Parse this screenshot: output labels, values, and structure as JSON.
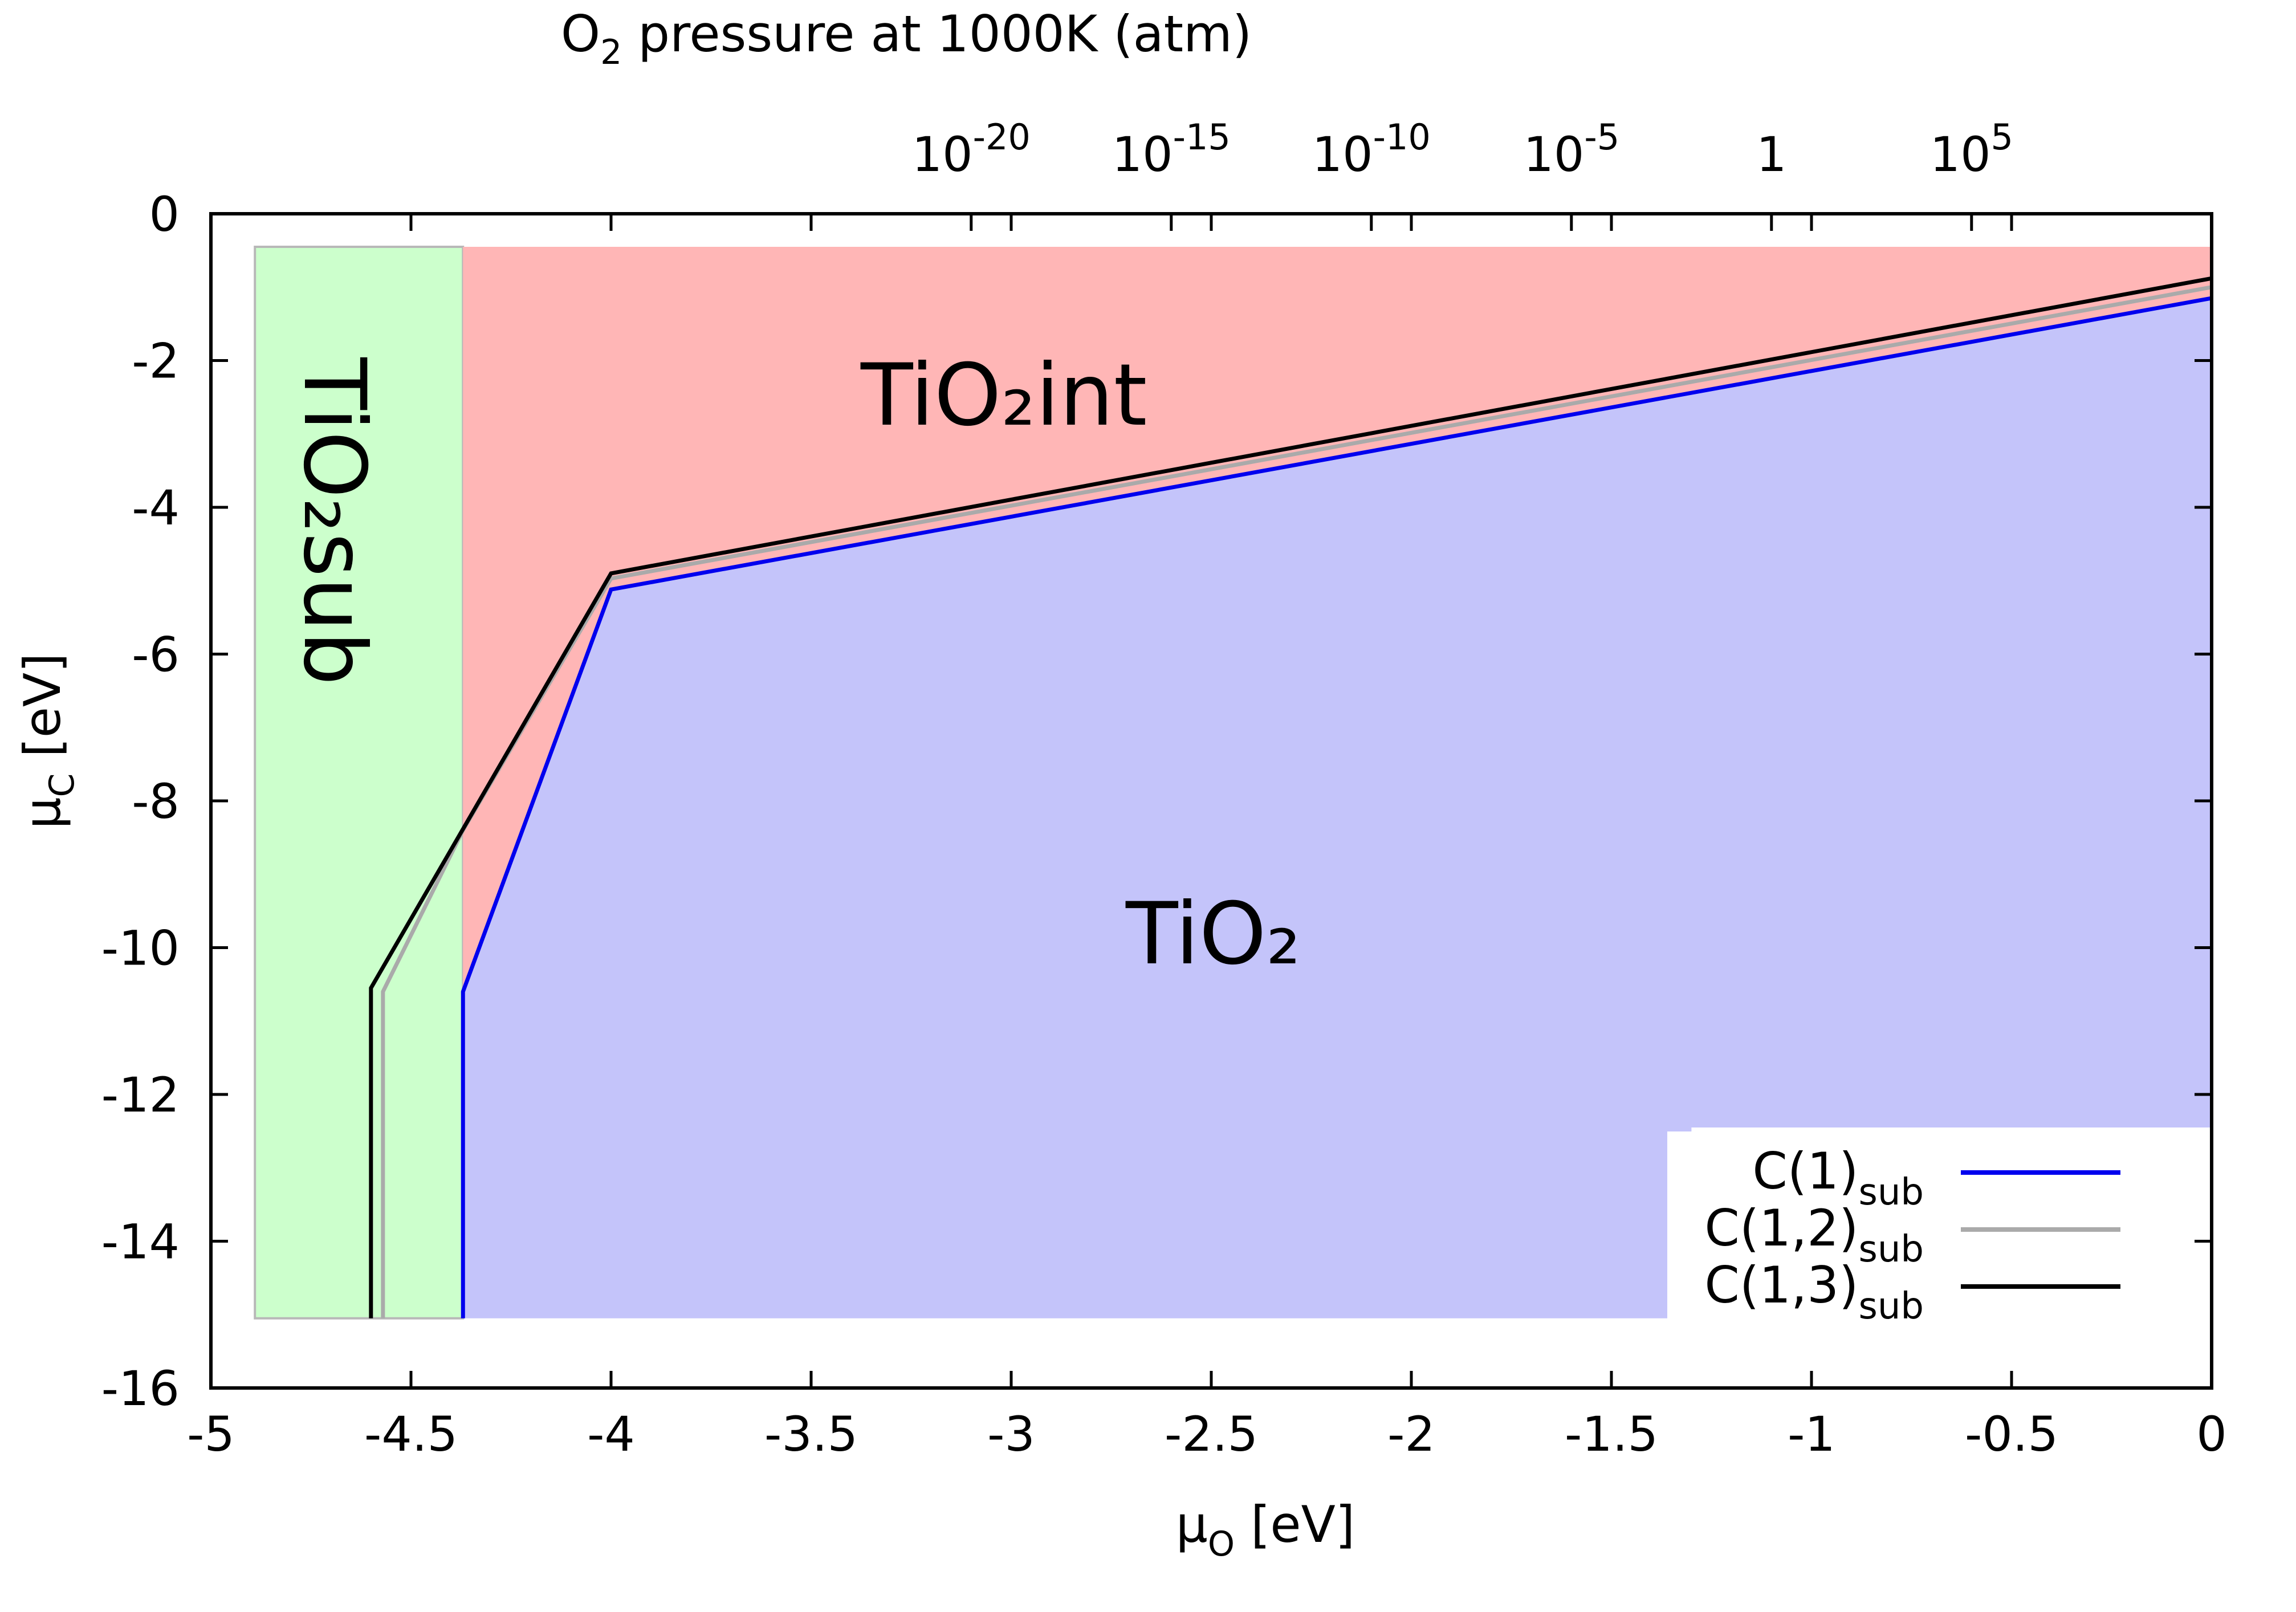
{
  "chart_data": {
    "type": "line",
    "title": "",
    "top_axis_title": "O",
    "top_axis_title_sub": "2",
    "top_axis_title_rest": " pressure at 1000K (atm)",
    "xlabel": "μ",
    "xlabel_sub": "O",
    "xlabel_rest": " [eV]",
    "ylabel": "μ",
    "ylabel_sub": "C",
    "ylabel_rest": " [eV]",
    "xlim": [
      -5,
      0
    ],
    "ylim": [
      -16,
      0
    ],
    "x_ticks": [
      -5,
      -4.5,
      -4,
      -3.5,
      -3,
      -2.5,
      -2,
      -1.5,
      -1,
      -0.5,
      0
    ],
    "x_tick_labels": [
      "-5",
      "-4.5",
      "-4",
      "-3.5",
      "-3",
      "-2.5",
      "-2",
      "-1.5",
      "-1",
      "-0.5",
      "0"
    ],
    "y_ticks": [
      0,
      -2,
      -4,
      -6,
      -8,
      -10,
      -12,
      -14,
      -16
    ],
    "y_tick_labels": [
      "0",
      "-2",
      "-4",
      "-6",
      "-8",
      "-10",
      "-12",
      "-14",
      "-16"
    ],
    "top_ticks": [
      {
        "x": -3.1,
        "base": "10",
        "exp": "-20"
      },
      {
        "x": -2.6,
        "base": "10",
        "exp": "-15"
      },
      {
        "x": -2.1,
        "base": "10",
        "exp": "-10"
      },
      {
        "x": -1.6,
        "base": "10",
        "exp": "-5"
      },
      {
        "x": -1.1,
        "base": "1",
        "exp": ""
      },
      {
        "x": -0.6,
        "base": "10",
        "exp": "5"
      }
    ],
    "regions": [
      {
        "name": "TiO2sub",
        "label": "TiO₂sub",
        "color": "#ccffcc",
        "polygon": [
          [
            -4.89,
            -0.45
          ],
          [
            -4.37,
            -0.45
          ],
          [
            -4.37,
            -15.05
          ],
          [
            -4.89,
            -15.05
          ]
        ]
      },
      {
        "name": "TiO2int",
        "label": "TiO₂int",
        "color": "#ffb6b6",
        "polygon": [
          [
            -4.37,
            -0.45
          ],
          [
            0,
            -0.45
          ],
          [
            0,
            -1.15
          ],
          [
            -4.0,
            -5.12
          ],
          [
            -4.37,
            -10.6
          ]
        ]
      },
      {
        "name": "TiO2",
        "label": "TiO₂",
        "color": "#c4c4fa",
        "polygon": [
          [
            -4.37,
            -10.6
          ],
          [
            -4.0,
            -5.12
          ],
          [
            0,
            -1.15
          ],
          [
            0,
            -12.45
          ],
          [
            -1.3,
            -12.45
          ],
          [
            -1.3,
            -15.05
          ],
          [
            -4.37,
            -15.05
          ]
        ]
      }
    ],
    "series": [
      {
        "name": "C(1)",
        "name_sub": "sub",
        "color": "#0000ee",
        "x": [
          -4.37,
          -4.37,
          -4.0,
          0
        ],
        "y": [
          -15.05,
          -10.6,
          -5.12,
          -1.15
        ]
      },
      {
        "name": "C(1,2)",
        "name_sub": "sub",
        "color": "#aaaaaa",
        "x": [
          -4.57,
          -4.57,
          -4.37,
          -4.0,
          0
        ],
        "y": [
          -15.05,
          -10.6,
          -8.4,
          -4.97,
          -1.0
        ]
      },
      {
        "name": "C(1,3)",
        "name_sub": "sub",
        "color": "#000000",
        "x": [
          -4.6,
          -4.6,
          -4.0,
          0
        ],
        "y": [
          -15.05,
          -10.55,
          -4.9,
          -0.88
        ]
      }
    ],
    "legend_position": "bottom-right",
    "grid": false
  }
}
